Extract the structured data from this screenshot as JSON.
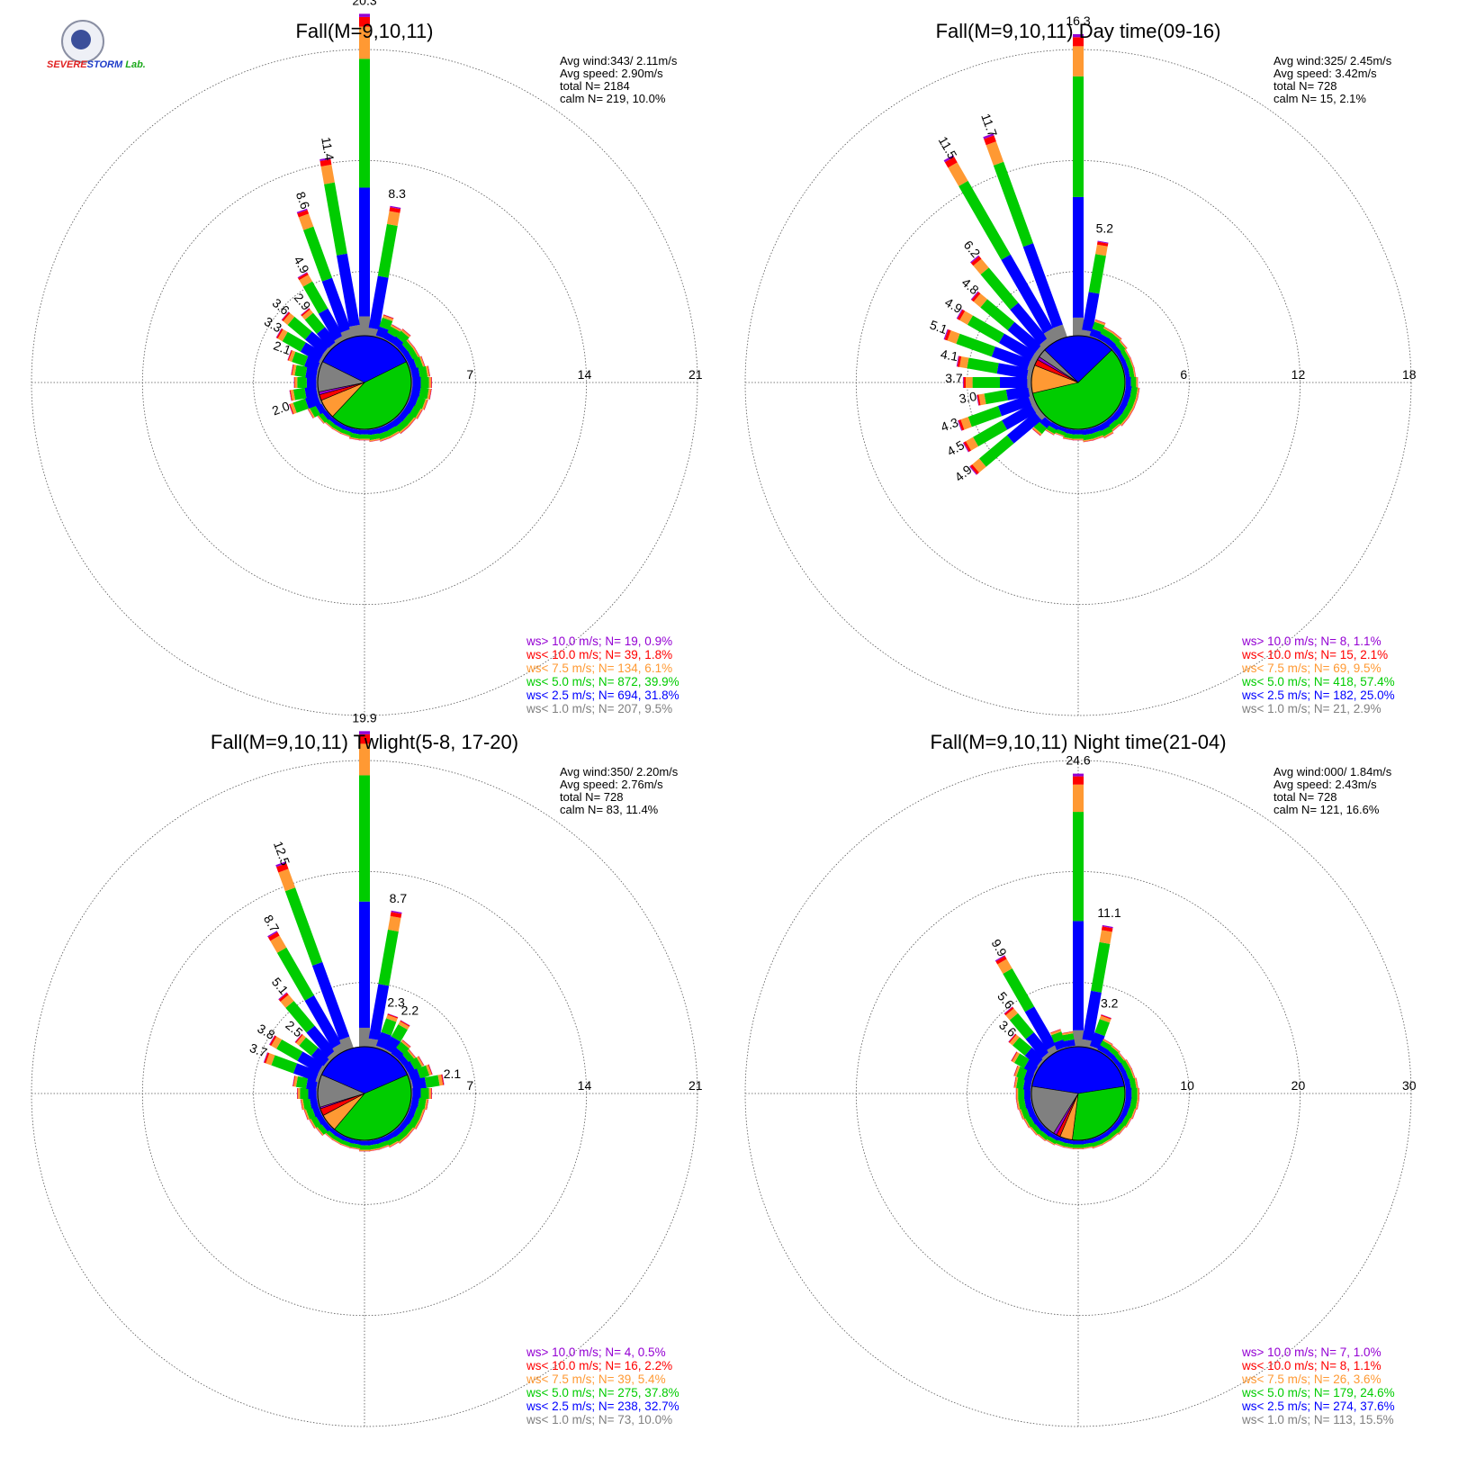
{
  "logo": {
    "line1": "SEVERE",
    "line2": "STORM",
    "line3": "Lab."
  },
  "colors": {
    "gt10": "#9400d3",
    "lt10": "#ff0000",
    "lt7_5": "#ff9933",
    "lt5": "#00cc00",
    "lt2_5": "#0000ff",
    "lt1": "#808080",
    "grid": "#555555"
  },
  "chart_data": [
    {
      "type": "wind-rose",
      "title": "Fall(M=9,10,11)",
      "stats": [
        "Avg wind:343/ 2.11m/s",
        "Avg speed: 2.90m/s",
        "total N=      2184",
        "calm N=    219,  10.0%"
      ],
      "rings": [
        "7",
        "14",
        "21"
      ],
      "rmax": 21,
      "legend": [
        {
          "text": "ws> 10.0 m/s; N=    19,  0.9%",
          "color": "gt10"
        },
        {
          "text": "ws< 10.0 m/s; N=    39,  1.8%",
          "color": "lt10"
        },
        {
          "text": "ws<  7.5 m/s; N=   134,  6.1%",
          "color": "lt7_5"
        },
        {
          "text": "ws<  5.0 m/s; N=   872, 39.9%",
          "color": "lt5"
        },
        {
          "text": "ws<  2.5 m/s; N=   694, 31.8%",
          "color": "lt2_5"
        },
        {
          "text": "ws<  1.0 m/s; N=   207,  9.5%",
          "color": "lt1"
        }
      ],
      "pie": [
        31.8,
        39.9,
        6.1,
        1.8,
        0.9,
        9.5
      ],
      "directions": [
        0,
        10,
        20,
        30,
        40,
        50,
        60,
        70,
        80,
        90,
        100,
        110,
        120,
        130,
        140,
        150,
        160,
        170,
        180,
        190,
        200,
        210,
        220,
        230,
        240,
        250,
        260,
        270,
        280,
        290,
        300,
        310,
        320,
        330,
        340,
        350
      ],
      "totals": [
        20.3,
        8.3,
        1.5,
        1.1,
        1.2,
        0.9,
        0.9,
        1.0,
        1.2,
        1.3,
        1.3,
        1.2,
        1.1,
        1.0,
        1.0,
        0.9,
        0.9,
        0.8,
        0.7,
        0.7,
        0.6,
        0.6,
        0.6,
        0.7,
        1.0,
        2.0,
        1.8,
        1.5,
        1.7,
        2.1,
        3.3,
        3.6,
        2.9,
        4.9,
        8.6,
        11.4
      ],
      "labels": [
        "20.3",
        "8.3",
        "",
        "",
        "",
        "",
        "",
        "",
        "",
        "",
        "",
        "",
        "",
        "",
        "",
        "",
        "",
        "",
        "",
        "",
        "",
        "",
        "",
        "",
        "",
        "2.0",
        "",
        "",
        "",
        "2.1",
        "3.3",
        "3.6",
        "2.9",
        "4.9",
        "8.6",
        "11.4"
      ]
    },
    {
      "type": "wind-rose",
      "title": "Fall(M=9,10,11) Day time(09-16)",
      "stats": [
        "Avg wind:325/ 2.45m/s",
        "Avg speed: 3.42m/s",
        "total N=        728",
        "calm N=     15,   2.1%"
      ],
      "rings": [
        "6",
        "12",
        "18"
      ],
      "rmax": 18,
      "legend": [
        {
          "text": "ws> 10.0 m/s; N=     8,  1.1%",
          "color": "gt10"
        },
        {
          "text": "ws< 10.0 m/s; N=    15,  2.1%",
          "color": "lt10"
        },
        {
          "text": "ws<  7.5 m/s; N=    69,  9.5%",
          "color": "lt7_5"
        },
        {
          "text": "ws<  5.0 m/s; N=   418, 57.4%",
          "color": "lt5"
        },
        {
          "text": "ws<  2.5 m/s; N=   182, 25.0%",
          "color": "lt2_5"
        },
        {
          "text": "ws<  1.0 m/s; N=    21,  2.9%",
          "color": "lt1"
        }
      ],
      "pie": [
        25.0,
        57.4,
        9.5,
        2.1,
        1.1,
        2.9
      ],
      "directions": [
        0,
        10,
        20,
        30,
        40,
        50,
        60,
        70,
        80,
        90,
        100,
        110,
        120,
        130,
        140,
        150,
        160,
        170,
        180,
        190,
        200,
        210,
        220,
        230,
        240,
        250,
        260,
        270,
        280,
        290,
        300,
        310,
        320,
        330,
        340,
        350
      ],
      "totals": [
        16.3,
        5.2,
        1.0,
        0.8,
        0.8,
        0.7,
        0.6,
        0.6,
        0.6,
        0.7,
        0.8,
        0.8,
        0.8,
        0.8,
        0.7,
        0.8,
        0.7,
        0.7,
        0.6,
        0.6,
        0.5,
        0.6,
        1.0,
        4.9,
        4.5,
        4.3,
        3.0,
        3.7,
        4.1,
        5.1,
        4.9,
        4.8,
        6.2,
        11.5,
        11.7,
        0
      ],
      "labels": [
        "16.3",
        "5.2",
        "",
        "",
        "",
        "",
        "",
        "",
        "",
        "",
        "",
        "",
        "",
        "",
        "",
        "",
        "",
        "",
        "",
        "",
        "",
        "",
        "",
        "4.9",
        "4.5",
        "4.3",
        "3.0",
        "3.7",
        "4.1",
        "5.1",
        "4.9",
        "4.8",
        "6.2",
        "11.5",
        "11.7",
        ""
      ]
    },
    {
      "type": "wind-rose",
      "title": "Fall(M=9,10,11) Twlight(5-8, 17-20)",
      "stats": [
        "Avg wind:350/ 2.20m/s",
        "Avg speed: 2.76m/s",
        "total N=        728",
        "calm N=     83,  11.4%"
      ],
      "rings": [
        "7",
        "14",
        "21"
      ],
      "rmax": 21,
      "legend": [
        {
          "text": "ws> 10.0 m/s; N=     4,  0.5%",
          "color": "gt10"
        },
        {
          "text": "ws< 10.0 m/s; N=    16,  2.2%",
          "color": "lt10"
        },
        {
          "text": "ws<  7.5 m/s; N=    39,  5.4%",
          "color": "lt7_5"
        },
        {
          "text": "ws<  5.0 m/s; N=   275, 37.8%",
          "color": "lt5"
        },
        {
          "text": "ws<  2.5 m/s; N=   238, 32.7%",
          "color": "lt2_5"
        },
        {
          "text": "ws<  1.0 m/s; N=    73, 10.0%",
          "color": "lt1"
        }
      ],
      "pie": [
        32.7,
        37.8,
        5.4,
        2.2,
        0.5,
        10.0
      ],
      "directions": [
        0,
        10,
        20,
        30,
        40,
        50,
        60,
        70,
        80,
        90,
        100,
        110,
        120,
        130,
        140,
        150,
        160,
        170,
        180,
        190,
        200,
        210,
        220,
        230,
        240,
        250,
        260,
        270,
        280,
        290,
        300,
        310,
        320,
        330,
        340,
        350
      ],
      "totals": [
        19.9,
        8.7,
        2.3,
        2.2,
        1.2,
        1.0,
        1.2,
        1.5,
        2.1,
        1.3,
        1.1,
        1.0,
        1.0,
        0.9,
        0.9,
        0.8,
        0.7,
        0.7,
        0.7,
        0.6,
        0.6,
        0.6,
        0.6,
        0.8,
        0.9,
        1.0,
        1.1,
        1.3,
        1.6,
        3.7,
        3.8,
        2.5,
        5.1,
        8.7,
        12.5,
        0
      ],
      "labels": [
        "19.9",
        "8.7",
        "2.3",
        "2.2",
        "",
        "",
        "",
        "",
        "2.1",
        "",
        "",
        "",
        "",
        "",
        "",
        "",
        "",
        "",
        "",
        "",
        "",
        "",
        "",
        "",
        "",
        "",
        "",
        "",
        "",
        "3.7",
        "3.8",
        "2.5",
        "5.1",
        "8.7",
        "12.5",
        ""
      ]
    },
    {
      "type": "wind-rose",
      "title": "Fall(M=9,10,11) Night time(21-04)",
      "stats": [
        "Avg wind:000/ 1.84m/s",
        "Avg speed: 2.43m/s",
        "total N=        728",
        "calm N=    121,  16.6%"
      ],
      "rings": [
        "10",
        "20",
        "30"
      ],
      "rmax": 30,
      "legend": [
        {
          "text": "ws> 10.0 m/s; N=     7,  1.0%",
          "color": "gt10"
        },
        {
          "text": "ws< 10.0 m/s; N=     8,  1.1%",
          "color": "lt10"
        },
        {
          "text": "ws<  7.5 m/s; N=    26,  3.6%",
          "color": "lt7_5"
        },
        {
          "text": "ws<  5.0 m/s; N=   179, 24.6%",
          "color": "lt5"
        },
        {
          "text": "ws<  2.5 m/s; N=   274, 37.6%",
          "color": "lt2_5"
        },
        {
          "text": "ws<  1.0 m/s; N=   113, 15.5%",
          "color": "lt1"
        }
      ],
      "pie": [
        37.6,
        24.6,
        3.6,
        1.1,
        1.0,
        15.5
      ],
      "directions": [
        0,
        10,
        20,
        30,
        40,
        50,
        60,
        70,
        80,
        90,
        100,
        110,
        120,
        130,
        140,
        150,
        160,
        170,
        180,
        190,
        200,
        210,
        220,
        230,
        240,
        250,
        260,
        270,
        280,
        290,
        300,
        310,
        320,
        330,
        340,
        350
      ],
      "totals": [
        24.6,
        11.1,
        3.2,
        1.2,
        1.1,
        1.0,
        1.1,
        1.1,
        1.2,
        1.3,
        1.3,
        1.2,
        1.1,
        1.0,
        0.9,
        0.9,
        0.9,
        0.8,
        0.8,
        0.8,
        0.8,
        0.9,
        1.0,
        1.1,
        1.2,
        1.3,
        1.4,
        1.4,
        1.6,
        1.8,
        2.5,
        3.6,
        5.6,
        9.9,
        1.8,
        1.4
      ],
      "labels": [
        "24.6",
        "11.1",
        "3.2",
        "",
        "",
        "",
        "",
        "",
        "",
        "",
        "",
        "",
        "",
        "",
        "",
        "",
        "",
        "",
        "",
        "",
        "",
        "",
        "",
        "",
        "",
        "",
        "",
        "",
        "",
        "",
        "",
        "3.6",
        "5.6",
        "9.9",
        "",
        ""
      ]
    }
  ]
}
